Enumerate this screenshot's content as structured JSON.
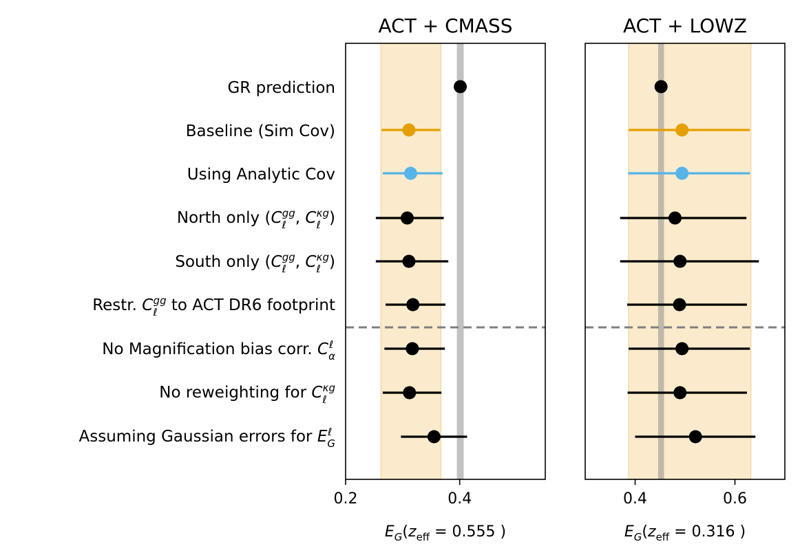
{
  "chart_data": {
    "type": "forest",
    "row_labels": [
      {
        "base": "GR prediction",
        "math": ""
      },
      {
        "base": "Baseline (Sim Cov)",
        "math": ""
      },
      {
        "base": "Using Analytic Cov",
        "math": ""
      },
      {
        "base": "North only (",
        "math": "C_ℓ^gg, C_ℓ^κg",
        "suffix": ")"
      },
      {
        "base": "South only (",
        "math": "C_ℓ^gg, C_ℓ^κg",
        "suffix": ")"
      },
      {
        "base": "Restr. ",
        "math": "C_ℓ^gg",
        "suffix": " to ACT DR6 footprint"
      },
      {
        "base": "No Magnification bias corr. ",
        "math": "C_α^ℓ"
      },
      {
        "base": "No reweighting for ",
        "math": "C_ℓ^κg"
      },
      {
        "base": "Assuming Gaussian errors for ",
        "math": "E_G^ℓ"
      }
    ],
    "separator_after_row": 5,
    "panels": [
      {
        "title": "ACT + CMASS",
        "xlabel": "E_G(z_eff = 0.555 )",
        "xlim": [
          0.2,
          0.55
        ],
        "xticks": [
          0.2,
          0.4
        ],
        "tick_labels": [
          "0.2",
          "0.4"
        ],
        "band": [
          0.262,
          0.367
        ],
        "gr_band": [
          0.395,
          0.407
        ],
        "points": [
          {
            "value": 0.401,
            "lo": 0.401,
            "hi": 0.401,
            "color": "#000000"
          },
          {
            "value": 0.311,
            "lo": 0.263,
            "hi": 0.366,
            "color": "#e69f00"
          },
          {
            "value": 0.314,
            "lo": 0.265,
            "hi": 0.37,
            "color": "#56b4e9"
          },
          {
            "value": 0.308,
            "lo": 0.253,
            "hi": 0.372,
            "color": "#000000"
          },
          {
            "value": 0.311,
            "lo": 0.253,
            "hi": 0.38,
            "color": "#000000"
          },
          {
            "value": 0.318,
            "lo": 0.27,
            "hi": 0.375,
            "color": "#000000"
          },
          {
            "value": 0.317,
            "lo": 0.268,
            "hi": 0.374,
            "color": "#000000"
          },
          {
            "value": 0.312,
            "lo": 0.265,
            "hi": 0.368,
            "color": "#000000"
          },
          {
            "value": 0.355,
            "lo": 0.297,
            "hi": 0.413,
            "color": "#000000"
          }
        ]
      },
      {
        "title": "ACT + LOWZ",
        "xlabel": "E_G(z_eff = 0.316 )",
        "xlim": [
          0.3,
          0.7
        ],
        "xticks": [
          0.4,
          0.6
        ],
        "tick_labels": [
          "0.4",
          "0.6"
        ],
        "band": [
          0.387,
          0.632
        ],
        "gr_band": [
          0.446,
          0.458
        ],
        "points": [
          {
            "value": 0.452,
            "lo": 0.452,
            "hi": 0.452,
            "color": "#000000"
          },
          {
            "value": 0.494,
            "lo": 0.387,
            "hi": 0.63,
            "color": "#e69f00"
          },
          {
            "value": 0.494,
            "lo": 0.386,
            "hi": 0.63,
            "color": "#56b4e9"
          },
          {
            "value": 0.48,
            "lo": 0.37,
            "hi": 0.623,
            "color": "#000000"
          },
          {
            "value": 0.49,
            "lo": 0.37,
            "hi": 0.648,
            "color": "#000000"
          },
          {
            "value": 0.489,
            "lo": 0.384,
            "hi": 0.624,
            "color": "#000000"
          },
          {
            "value": 0.494,
            "lo": 0.387,
            "hi": 0.63,
            "color": "#000000"
          },
          {
            "value": 0.49,
            "lo": 0.385,
            "hi": 0.624,
            "color": "#000000"
          },
          {
            "value": 0.521,
            "lo": 0.4,
            "hi": 0.641,
            "color": "#000000"
          }
        ]
      }
    ]
  }
}
